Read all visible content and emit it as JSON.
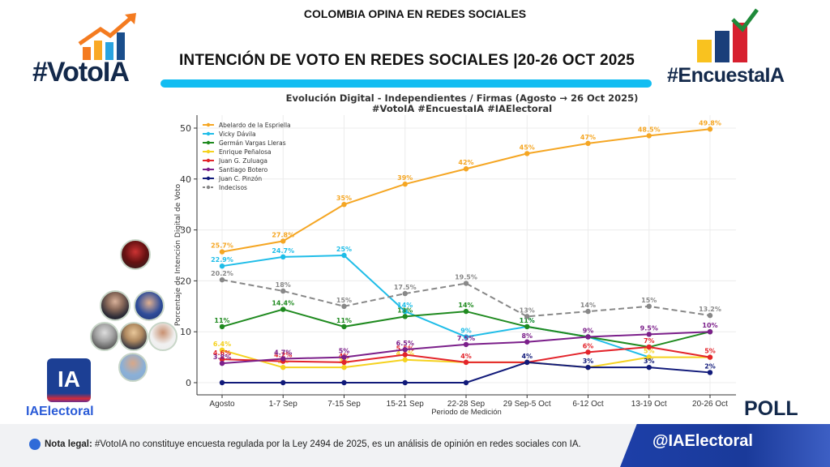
{
  "header": {
    "top_title": "COLOMBIA OPINA EN REDES SOCIALES",
    "main_title": "INTENCIÓN DE VOTO EN REDES SOCIALES |20-26 OCT 2025",
    "logo_left": "#VotoIA",
    "logo_right": "#EncuestaIA"
  },
  "side": {
    "ia_box": "IA",
    "ia_label": "IAElectoral",
    "poll_label": "POLL"
  },
  "footer": {
    "note_bold": "Nota legal:",
    "note_text": " #VotoIA no constituye encuesta regulada por la Ley 2494 de 2025, es un análisis de opinión en redes sociales con IA.",
    "handle": "@IAElectoral"
  },
  "colors": {
    "accent_cyan": "#12bdf2",
    "brand_navy": "#13294b"
  },
  "chart_data": {
    "type": "line",
    "title": "Evolución Digital - Independientes / Firmas (Agosto → 26 Oct 2025)",
    "subtitle": "#VotoIA #EncuestaIA #IAElectoral",
    "xlabel": "Periodo de Medición",
    "ylabel": "Porcentaje de Intención Digital de Voto",
    "ylim": [
      0,
      52
    ],
    "yticks": [
      0,
      10,
      20,
      30,
      40,
      50
    ],
    "grid": true,
    "legend_position": "top-left",
    "categories": [
      "Agosto",
      "1-7 Sep",
      "7-15 Sep",
      "15-21 Sep",
      "22-28 Sep",
      "29 Sep-5 Oct",
      "6-12 Oct",
      "13-19 Oct",
      "20-26 Oct"
    ],
    "series": [
      {
        "name": "Abelardo de la Espriella",
        "color": "#f5a623",
        "dashed": false,
        "values": [
          25.7,
          27.8,
          35,
          39,
          42,
          45,
          47,
          48.5,
          49.8
        ],
        "labels": [
          "25.7%",
          "27.8%",
          "35%",
          "39%",
          "42%",
          "45%",
          "47%",
          "48.5%",
          "49.8%"
        ]
      },
      {
        "name": "Vicky Dávila",
        "color": "#1fbde8",
        "dashed": false,
        "values": [
          22.9,
          24.7,
          25,
          14,
          9,
          11,
          9,
          5,
          null
        ],
        "labels": [
          "22.9%",
          "24.7%",
          "25%",
          "14%",
          "9%",
          "11%",
          "",
          "",
          ""
        ]
      },
      {
        "name": "Germán Vargas Lleras",
        "color": "#1f8a1f",
        "dashed": false,
        "values": [
          11,
          14.4,
          11,
          13,
          14,
          11,
          9,
          7,
          10
        ],
        "labels": [
          "11%",
          "14.4%",
          "11%",
          "13%",
          "14%",
          "11%",
          "",
          "",
          ""
        ]
      },
      {
        "name": "Enrique Peñalosa",
        "color": "#f5d21f",
        "dashed": false,
        "values": [
          6.4,
          3,
          3,
          4.5,
          4,
          4,
          3,
          5,
          5
        ],
        "labels": [
          "6.4%",
          "3%",
          "3%",
          "4.5%",
          "",
          "",
          "",
          "5%",
          ""
        ]
      },
      {
        "name": "Juan G. Zuluaga",
        "color": "#e3242b",
        "dashed": false,
        "values": [
          4.6,
          4.2,
          4,
          5.5,
          4,
          4,
          6,
          7,
          5
        ],
        "labels": [
          "4.6%",
          "4.2%",
          "4%",
          "5.5%",
          "4%",
          "",
          "6%",
          "7%",
          "5%"
        ]
      },
      {
        "name": "Santiago Botero",
        "color": "#7b1f8a",
        "dashed": false,
        "values": [
          3.8,
          4.7,
          5,
          6.5,
          7.5,
          8,
          9,
          9.5,
          10
        ],
        "labels": [
          "3.8%",
          "4.7%",
          "5%",
          "6.5%",
          "7.5%",
          "8%",
          "9%",
          "9.5%",
          "10%"
        ]
      },
      {
        "name": "Juan C. Pinzón",
        "color": "#111a7a",
        "dashed": false,
        "values": [
          0,
          0,
          0,
          0,
          0,
          4,
          3,
          3,
          2
        ],
        "labels": [
          "",
          "",
          "",
          "",
          "",
          "4%",
          "3%",
          "3%",
          "2%"
        ]
      },
      {
        "name": "Indecisos",
        "color": "#888888",
        "dashed": true,
        "values": [
          20.2,
          18,
          15,
          17.5,
          19.5,
          13,
          14,
          15,
          13.2
        ],
        "labels": [
          "20.2%",
          "18%",
          "15%",
          "17.5%",
          "19.5%",
          "13%",
          "14%",
          "15%",
          "13.2%"
        ]
      }
    ]
  }
}
